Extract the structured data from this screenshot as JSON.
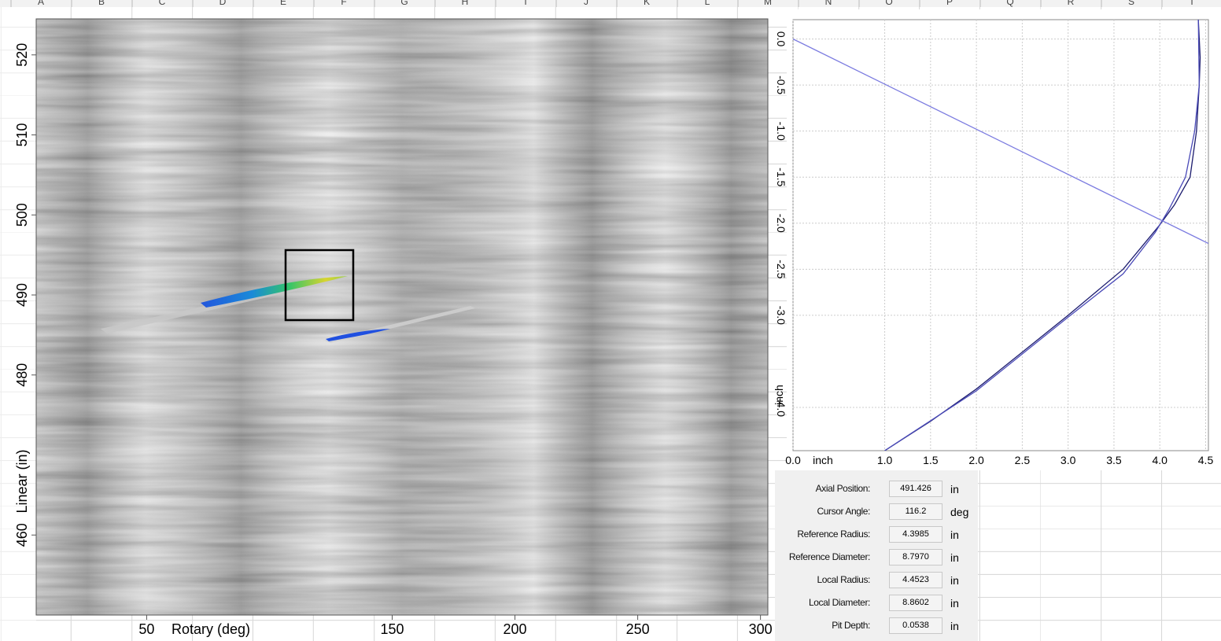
{
  "spreadsheet": {
    "columns": [
      "A",
      "B",
      "C",
      "D",
      "E",
      "F",
      "G",
      "H",
      "I",
      "J",
      "K",
      "L",
      "M",
      "N",
      "O",
      "P",
      "Q",
      "R",
      "S",
      "T"
    ]
  },
  "chart_data": [
    {
      "type": "image",
      "x_label": "Rotary (deg)",
      "y_label": "Linear (in)",
      "xlim": [
        5,
        303
      ],
      "xticks": [
        50,
        150,
        200,
        250,
        300
      ],
      "ylim": [
        450,
        524.5
      ],
      "yticks": [
        460,
        480,
        490,
        500,
        510,
        520
      ]
    },
    {
      "type": "line",
      "x_label": "inch",
      "y_label": "inch",
      "grid": true,
      "xlim": [
        0,
        4.53
      ],
      "xticks": [
        {
          "value": 0,
          "label": "0.0"
        },
        {
          "value": 1,
          "label": "1.0"
        },
        1.5,
        {
          "value": 2,
          "label": "2.0"
        },
        2.5,
        {
          "value": 3,
          "label": "3.0"
        },
        3.5,
        {
          "value": 4,
          "label": "4.0"
        },
        4.5
      ],
      "ylim": [
        -4.47,
        0.21
      ],
      "yticks": [
        {
          "value": 0,
          "label": "0.0"
        },
        -0.5,
        {
          "value": -1,
          "label": "-1.0"
        },
        -1.5,
        {
          "value": -2,
          "label": "-2.0"
        },
        -2.5,
        {
          "value": -3,
          "label": "-3.0"
        },
        {
          "value": -4,
          "label": "-4.0"
        }
      ],
      "series": [
        {
          "color": "#1c1c6e",
          "x": [
            4.42,
            4.44,
            4.43,
            4.4,
            4.33,
            4.16,
            3.99,
            3.6,
            3.0,
            2.5,
            2.0,
            1.5,
            1.0
          ],
          "values": [
            0.21,
            -0.2,
            -0.5,
            -1.0,
            -1.5,
            -1.8,
            -2.03,
            -2.5,
            -3.0,
            -3.4,
            -3.8,
            -4.15,
            -4.47
          ]
        },
        {
          "color": "#4a4ab8",
          "x": [
            4.42,
            4.43,
            4.38,
            4.28,
            4.1,
            3.95,
            3.6,
            3.0,
            2.0,
            1.0
          ],
          "values": [
            0.21,
            -0.5,
            -1.0,
            -1.5,
            -1.85,
            -2.1,
            -2.55,
            -3.02,
            -3.82,
            -4.47
          ]
        },
        {
          "color": "#7b7be0",
          "x": [
            0,
            4.53
          ],
          "values": [
            0,
            -2.22
          ]
        }
      ]
    }
  ],
  "panel": {
    "rows": [
      {
        "label": "Axial Position:",
        "value": "491.426",
        "unit": "in"
      },
      {
        "label": "Cursor Angle:",
        "value": "116.2",
        "unit": "deg"
      },
      {
        "label": "Reference Radius:",
        "value": "4.3985",
        "unit": "in"
      },
      {
        "label": "Reference Diameter:",
        "value": "8.7970",
        "unit": "in"
      },
      {
        "label": "Local Radius:",
        "value": "4.4523",
        "unit": "in"
      },
      {
        "label": "Local Diameter:",
        "value": "8.8602",
        "unit": "in"
      },
      {
        "label": "Pit Depth:",
        "value": "0.0538",
        "unit": "in"
      }
    ]
  }
}
